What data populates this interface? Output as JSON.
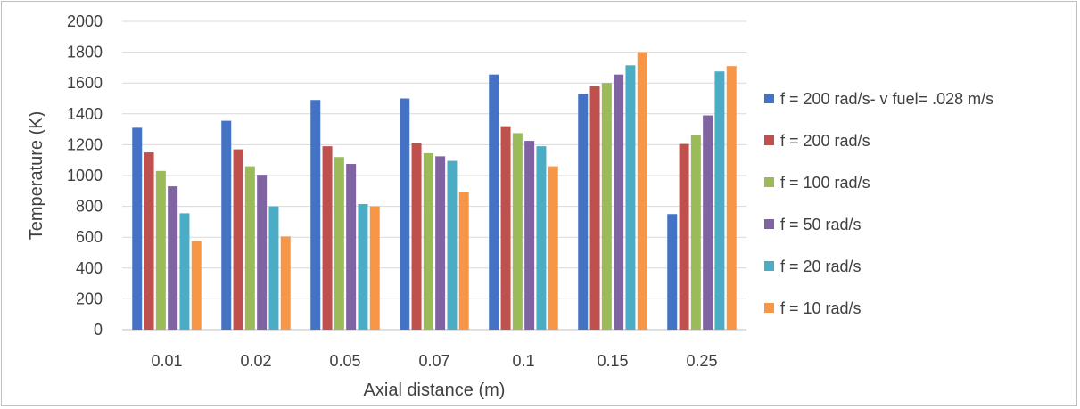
{
  "chart_data": {
    "type": "bar",
    "title": "",
    "xlabel": "Axial distance (m)",
    "ylabel": "Temperature (K)",
    "categories": [
      "0.01",
      "0.02",
      "0.05",
      "0.07",
      "0.1",
      "0.15",
      "0.25"
    ],
    "ylim": [
      0,
      2000
    ],
    "yticks": [
      0,
      200,
      400,
      600,
      800,
      1000,
      1200,
      1400,
      1600,
      1800,
      2000
    ],
    "grid": true,
    "legend_position": "right",
    "series": [
      {
        "name": "f = 200 rad/s- v fuel= .028 m/s",
        "color": "#4472c4",
        "values": [
          1310,
          1355,
          1490,
          1500,
          1655,
          1530,
          750
        ]
      },
      {
        "name": "f = 200 rad/s",
        "color": "#c0504d",
        "values": [
          1150,
          1170,
          1190,
          1210,
          1320,
          1580,
          1205
        ]
      },
      {
        "name": "f = 100 rad/s",
        "color": "#9bbb59",
        "values": [
          1030,
          1060,
          1120,
          1145,
          1275,
          1600,
          1260
        ]
      },
      {
        "name": "f = 50 rad/s",
        "color": "#8064a2",
        "values": [
          930,
          1005,
          1075,
          1125,
          1225,
          1655,
          1390
        ]
      },
      {
        "name": "f = 20 rad/s",
        "color": "#4bacc6",
        "values": [
          755,
          800,
          815,
          1095,
          1190,
          1715,
          1675
        ]
      },
      {
        "name": "f = 10 rad/s",
        "color": "#f79646",
        "values": [
          575,
          605,
          800,
          890,
          1060,
          1800,
          1710
        ]
      }
    ]
  }
}
